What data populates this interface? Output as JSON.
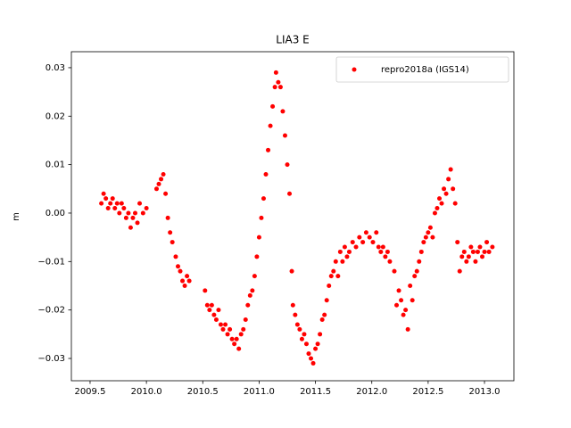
{
  "chart_data": {
    "type": "scatter",
    "title": "LIA3 E",
    "y_label": "m",
    "xlim": [
      2009.334,
      2013.261
    ],
    "ylim": [
      -0.0346,
      0.0333
    ],
    "xticks": [
      2009.5,
      {
        "value": 2010.0,
        "label": "2010.0"
      },
      2010.5,
      {
        "value": 2011.0,
        "label": "2011.0"
      },
      2011.5,
      {
        "value": 2012.0,
        "label": "2012.0"
      },
      2012.5,
      {
        "value": 2013.0,
        "label": "2013.0"
      }
    ],
    "yticks": [
      {
        "value": -0.03,
        "label": "−0.03"
      },
      {
        "value": -0.02,
        "label": "−0.02"
      },
      {
        "value": -0.01,
        "label": "−0.01"
      },
      {
        "value": 0,
        "label": "0.00"
      },
      0.01,
      0.02,
      0.03
    ],
    "grid": false,
    "legend": "upper right",
    "x": [
      2009.6,
      2009.62,
      2009.64,
      2009.66,
      2009.68,
      2009.7,
      2009.72,
      2009.74,
      2009.76,
      2009.78,
      2009.8,
      2009.82,
      2009.84,
      2009.86,
      2009.88,
      2009.9,
      2009.92,
      2009.94,
      2009.97,
      2010.0,
      2010.09,
      2010.11,
      2010.13,
      2010.15,
      2010.17,
      2010.19,
      2010.21,
      2010.23,
      2010.26,
      2010.28,
      2010.3,
      2010.32,
      2010.34,
      2010.36,
      2010.38,
      2010.52,
      2010.54,
      2010.56,
      2010.58,
      2010.6,
      2010.62,
      2010.64,
      2010.66,
      2010.68,
      2010.7,
      2010.72,
      2010.74,
      2010.76,
      2010.78,
      2010.8,
      2010.82,
      2010.84,
      2010.86,
      2010.88,
      2010.9,
      2010.92,
      2010.94,
      2010.96,
      2010.98,
      2011.0,
      2011.02,
      2011.04,
      2011.06,
      2011.08,
      2011.1,
      2011.12,
      2011.14,
      2011.15,
      2011.17,
      2011.19,
      2011.21,
      2011.23,
      2011.25,
      2011.27,
      2011.29,
      2011.3,
      2011.32,
      2011.34,
      2011.36,
      2011.38,
      2011.4,
      2011.42,
      2011.44,
      2011.46,
      2011.48,
      2011.5,
      2011.52,
      2011.54,
      2011.56,
      2011.58,
      2011.6,
      2011.62,
      2011.64,
      2011.66,
      2011.68,
      2011.7,
      2011.72,
      2011.74,
      2011.76,
      2011.78,
      2011.8,
      2011.83,
      2011.86,
      2011.89,
      2011.92,
      2011.95,
      2011.98,
      2012.01,
      2012.04,
      2012.06,
      2012.08,
      2012.1,
      2012.12,
      2012.14,
      2012.16,
      2012.2,
      2012.22,
      2012.24,
      2012.26,
      2012.28,
      2012.3,
      2012.32,
      2012.34,
      2012.36,
      2012.38,
      2012.4,
      2012.42,
      2012.44,
      2012.46,
      2012.48,
      2012.5,
      2012.52,
      2012.54,
      2012.56,
      2012.58,
      2012.6,
      2012.62,
      2012.64,
      2012.66,
      2012.68,
      2012.7,
      2012.72,
      2012.74,
      2012.76,
      2012.78,
      2012.8,
      2012.82,
      2012.84,
      2012.86,
      2012.88,
      2012.9,
      2012.92,
      2012.94,
      2012.96,
      2012.98,
      2013.0,
      2013.02,
      2013.04,
      2013.07
    ],
    "series": [
      {
        "name": "repro2018a (IGS14)",
        "color": "#ff0000",
        "values": [
          0.002,
          0.004,
          0.003,
          0.001,
          0.002,
          0.003,
          0.001,
          0.002,
          0.0,
          0.002,
          0.001,
          -0.001,
          0.0,
          -0.003,
          -0.001,
          0.0,
          -0.002,
          0.002,
          0.0,
          0.001,
          0.005,
          0.006,
          0.007,
          0.008,
          0.004,
          -0.001,
          -0.004,
          -0.006,
          -0.009,
          -0.011,
          -0.012,
          -0.014,
          -0.015,
          -0.013,
          -0.014,
          -0.016,
          -0.019,
          -0.02,
          -0.019,
          -0.021,
          -0.022,
          -0.02,
          -0.023,
          -0.024,
          -0.023,
          -0.025,
          -0.024,
          -0.026,
          -0.027,
          -0.026,
          -0.028,
          -0.025,
          -0.024,
          -0.022,
          -0.019,
          -0.017,
          -0.016,
          -0.013,
          -0.009,
          -0.005,
          -0.001,
          0.003,
          0.008,
          0.013,
          0.018,
          0.022,
          0.026,
          0.029,
          0.027,
          0.026,
          0.021,
          0.016,
          0.01,
          0.004,
          -0.012,
          -0.019,
          -0.021,
          -0.023,
          -0.024,
          -0.026,
          -0.025,
          -0.027,
          -0.029,
          -0.03,
          -0.031,
          -0.028,
          -0.027,
          -0.025,
          -0.022,
          -0.021,
          -0.018,
          -0.015,
          -0.013,
          -0.012,
          -0.01,
          -0.013,
          -0.008,
          -0.01,
          -0.007,
          -0.009,
          -0.008,
          -0.006,
          -0.007,
          -0.005,
          -0.006,
          -0.004,
          -0.005,
          -0.006,
          -0.004,
          -0.007,
          -0.008,
          -0.007,
          -0.009,
          -0.008,
          -0.01,
          -0.012,
          -0.019,
          -0.016,
          -0.018,
          -0.021,
          -0.02,
          -0.024,
          -0.015,
          -0.018,
          -0.013,
          -0.012,
          -0.01,
          -0.008,
          -0.006,
          -0.005,
          -0.004,
          -0.003,
          -0.005,
          0.0,
          0.001,
          0.003,
          0.002,
          0.005,
          0.004,
          0.007,
          0.009,
          0.005,
          0.002,
          -0.006,
          -0.012,
          -0.009,
          -0.008,
          -0.01,
          -0.009,
          -0.007,
          -0.008,
          -0.01,
          -0.008,
          -0.007,
          -0.009,
          -0.008,
          -0.006,
          -0.008,
          -0.007
        ]
      }
    ]
  }
}
